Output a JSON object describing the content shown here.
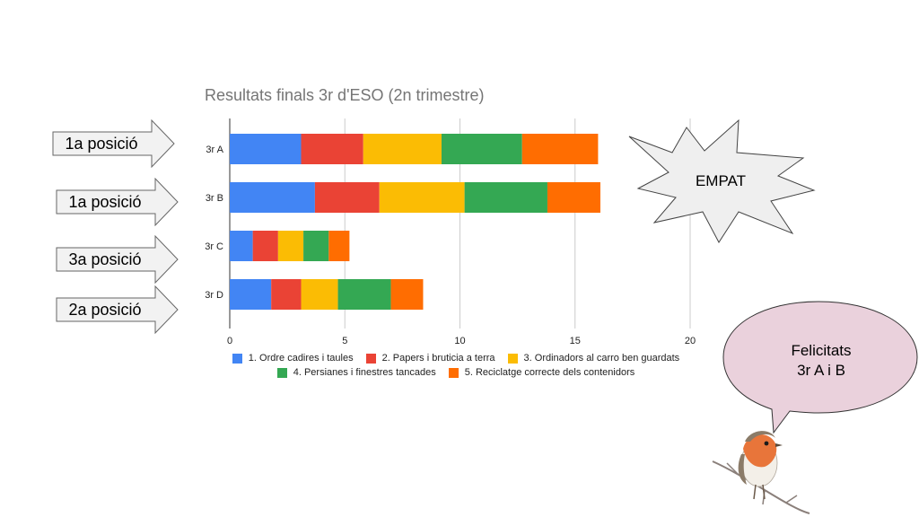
{
  "chart_data": {
    "type": "bar",
    "orientation": "horizontal",
    "stacked": true,
    "title": "Resultats finals 3r d'ESO (2n trimestre)",
    "categories": [
      "3r A",
      "3r B",
      "3r C",
      "3r D"
    ],
    "series": [
      {
        "name": "1. Ordre cadires i taules",
        "color": "#4285f4",
        "values": [
          3.1,
          3.7,
          1.0,
          1.8
        ]
      },
      {
        "name": "2. Papers i bruticia a terra",
        "color": "#ea4335",
        "values": [
          2.7,
          2.8,
          1.1,
          1.3
        ]
      },
      {
        "name": "3. Ordinadors al carro ben guardats",
        "color": "#fbbc04",
        "values": [
          3.4,
          3.7,
          1.1,
          1.6
        ]
      },
      {
        "name": "4. Persianes i finestres tancades",
        "color": "#34a853",
        "values": [
          3.5,
          3.6,
          1.1,
          2.3
        ]
      },
      {
        "name": "5. Reciclatge correcte dels contenidors",
        "color": "#ff6d01",
        "values": [
          3.3,
          2.3,
          0.9,
          1.4
        ]
      }
    ],
    "xlim": [
      0,
      20
    ],
    "xticks": [
      0,
      5,
      10,
      15,
      20
    ],
    "grid": true,
    "legend_position": "bottom"
  },
  "rank_arrows": [
    {
      "label": "1a posició"
    },
    {
      "label": "1a posició"
    },
    {
      "label": "3a posició"
    },
    {
      "label": "2a posició"
    }
  ],
  "starburst": {
    "label": "EMPAT"
  },
  "speech_bubble": {
    "line1": "Felicitats",
    "line2": "3r A i B"
  },
  "colors": {
    "arrow_fill": "#f2f2f2",
    "arrow_stroke": "#666666",
    "bubble_fill": "#ead1dc",
    "starburst_fill": "#efefef",
    "grid": "#cccccc",
    "title": "#757575"
  }
}
